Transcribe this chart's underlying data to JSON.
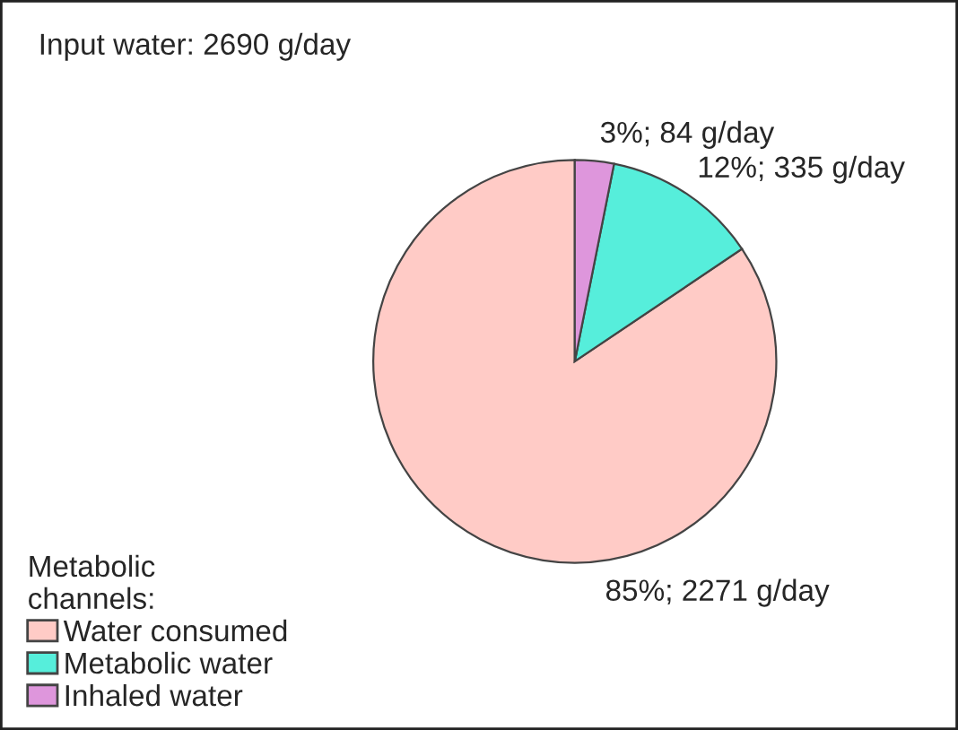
{
  "chart_data": {
    "type": "pie",
    "title": "Input water: 2690 g/day",
    "legend_title": "Metabolic channels:",
    "categories": [
      "Water consumed",
      "Metabolic water",
      "Inhaled water"
    ],
    "values": [
      2271,
      335,
      84
    ],
    "colors": [
      "#ffcbc6",
      "#56eedb",
      "#de96dc"
    ],
    "value_labels": [
      "85%; 2271 g/day",
      "12%; 335 g/day",
      "3%; 84 g/day"
    ],
    "legend": "bottom left"
  }
}
